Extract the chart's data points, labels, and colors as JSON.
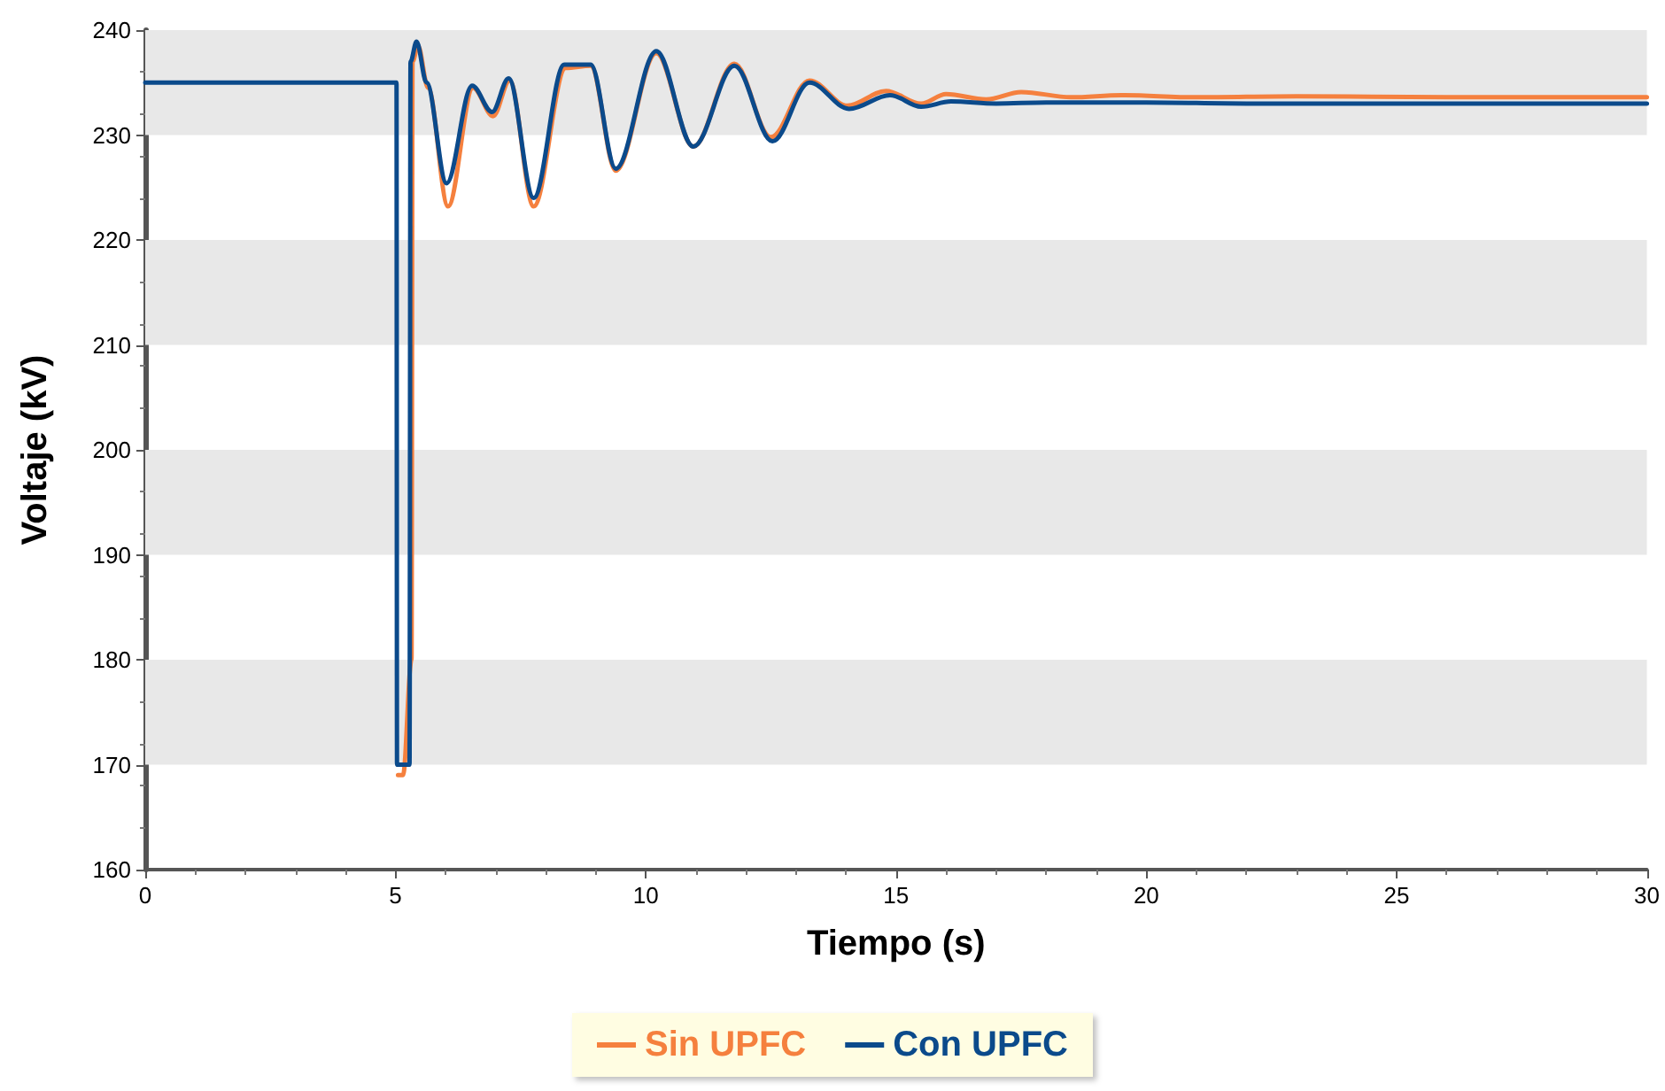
{
  "chart_data": {
    "type": "line",
    "xlabel": "Tiempo (s)",
    "ylabel": "Voltaje (kV)",
    "xlim": [
      0,
      30
    ],
    "xticks": [
      0,
      5,
      10,
      15,
      20,
      25,
      30
    ],
    "ylim": [
      160,
      240
    ],
    "yticks": [
      160,
      170,
      180,
      190,
      200,
      210,
      220,
      230,
      240
    ],
    "bands": [
      {
        "axis": "y",
        "from": 170,
        "to": 180,
        "color": "#e8e8e8"
      },
      {
        "axis": "y",
        "from": 190,
        "to": 200,
        "color": "#e8e8e8"
      },
      {
        "axis": "y",
        "from": 210,
        "to": 220,
        "color": "#e8e8e8"
      },
      {
        "axis": "y",
        "from": 230,
        "to": 240,
        "color": "#e8e8e8"
      }
    ],
    "legend": "bottom",
    "marker": "none",
    "line_style": "solid",
    "series": [
      {
        "name": "Sin UPFC",
        "color": "#f5803e",
        "x": [
          5.05,
          5.15,
          5.32,
          5.34,
          5.45,
          5.65,
          6.05,
          6.55,
          6.95,
          7.28,
          7.76,
          8.4,
          8.9,
          9.4,
          10.21,
          10.95,
          11.77,
          12.5,
          13.27,
          14.03,
          14.8,
          15.5,
          16.0,
          16.8,
          17.5,
          18.5,
          19.5,
          21,
          23,
          26,
          30
        ],
        "values": [
          169,
          169,
          180,
          237,
          238.5,
          234.5,
          223.2,
          234.5,
          231.8,
          235.2,
          223.2,
          236.4,
          236.6,
          226.6,
          237.8,
          228.9,
          236.8,
          229.8,
          235.2,
          232.8,
          234.2,
          233,
          233.9,
          233.4,
          234.1,
          233.6,
          233.8,
          233.6,
          233.7,
          233.6,
          233.6
        ]
      },
      {
        "name": "Con UPFC",
        "color": "#0b4a8b",
        "x": [
          0,
          5.02,
          5.03,
          5.28,
          5.3,
          5.42,
          5.62,
          6.02,
          6.53,
          6.93,
          7.26,
          7.76,
          8.37,
          8.9,
          9.4,
          10.21,
          10.95,
          11.77,
          12.53,
          13.27,
          14.06,
          14.88,
          15.5,
          16.1,
          17,
          18,
          20,
          22,
          25,
          28,
          30
        ],
        "values": [
          235,
          235,
          170,
          170,
          237,
          238.9,
          235,
          225.4,
          234.7,
          232.2,
          235.4,
          224.0,
          236.7,
          236.7,
          226.8,
          238,
          228.9,
          236.6,
          229.4,
          235,
          232.5,
          233.8,
          232.7,
          233.2,
          233.0,
          233.1,
          233.1,
          233.0,
          233.0,
          233.0,
          233.0
        ]
      }
    ]
  }
}
